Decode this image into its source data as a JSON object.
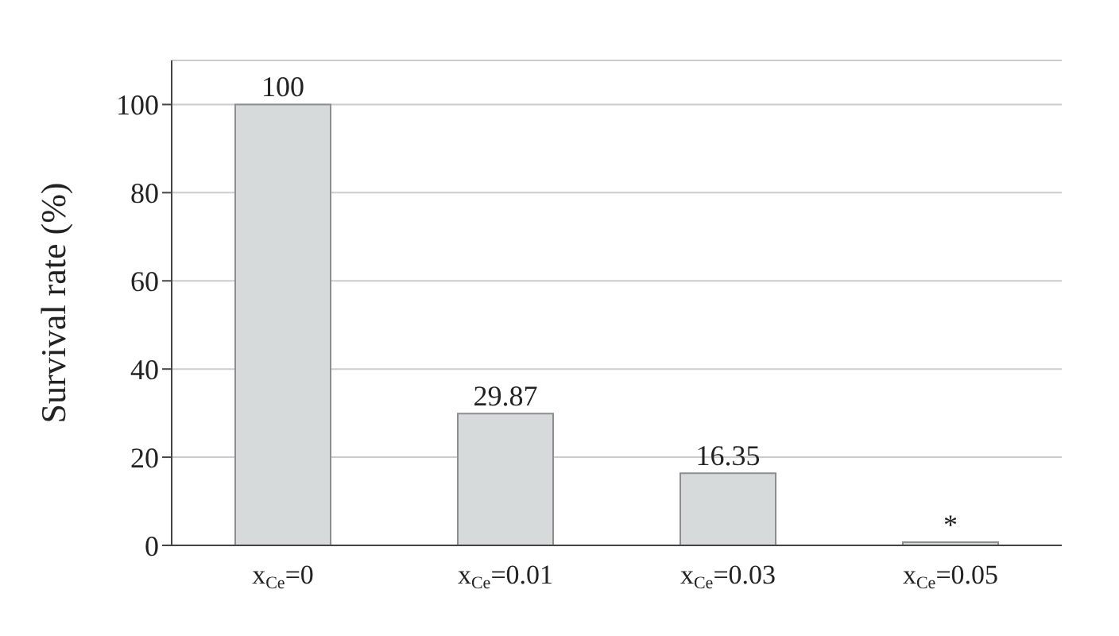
{
  "chart_data": {
    "type": "bar",
    "ylabel": "Survival rate (%)",
    "categories": [
      "x$_{Ce}$=0",
      "x$_{Ce}$=0.01",
      "x$_{Ce}$=0.03",
      "x$_{Ce}$=0.05"
    ],
    "values": [
      100,
      29.87,
      16.35,
      0
    ],
    "value_labels": [
      "100",
      "29.87",
      "16.35",
      "*"
    ],
    "color": "#d6dada",
    "ylim": [
      0,
      110
    ],
    "yticks": [
      0,
      20,
      40,
      60,
      80,
      100
    ],
    "grid": "y"
  }
}
